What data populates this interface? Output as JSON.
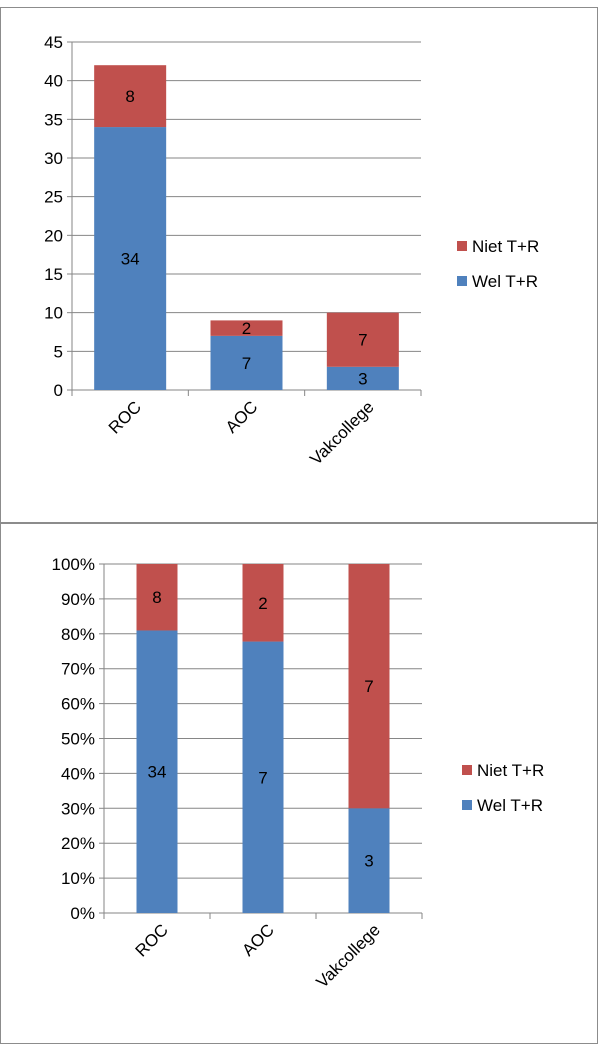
{
  "chart_data": [
    {
      "type": "bar",
      "stacked": true,
      "categories": [
        "ROC",
        "AOC",
        "Vakcollege"
      ],
      "series": [
        {
          "name": "Wel T+R",
          "values": [
            34,
            7,
            3
          ],
          "color": "#4f81bd"
        },
        {
          "name": "Niet T+R",
          "values": [
            8,
            2,
            7
          ],
          "color": "#c0504d"
        }
      ],
      "ylim": [
        0,
        45
      ],
      "ytick_labels": [
        "0",
        "5",
        "10",
        "15",
        "20",
        "25",
        "30",
        "35",
        "40",
        "45"
      ],
      "grid": true,
      "legend": "right",
      "title": "",
      "xlabel": "",
      "ylabel": ""
    },
    {
      "type": "bar",
      "stacked": true,
      "percent": true,
      "categories": [
        "ROC",
        "AOC",
        "Vakcollege"
      ],
      "series": [
        {
          "name": "Wel T+R",
          "values": [
            34,
            7,
            3
          ],
          "color": "#4f81bd"
        },
        {
          "name": "Niet T+R",
          "values": [
            8,
            2,
            7
          ],
          "color": "#c0504d"
        }
      ],
      "ylim": [
        0,
        100
      ],
      "ytick_labels": [
        "0%",
        "10%",
        "20%",
        "30%",
        "40%",
        "50%",
        "60%",
        "70%",
        "80%",
        "90%",
        "100%"
      ],
      "grid": true,
      "legend": "right",
      "title": "",
      "xlabel": "",
      "ylabel": ""
    }
  ]
}
